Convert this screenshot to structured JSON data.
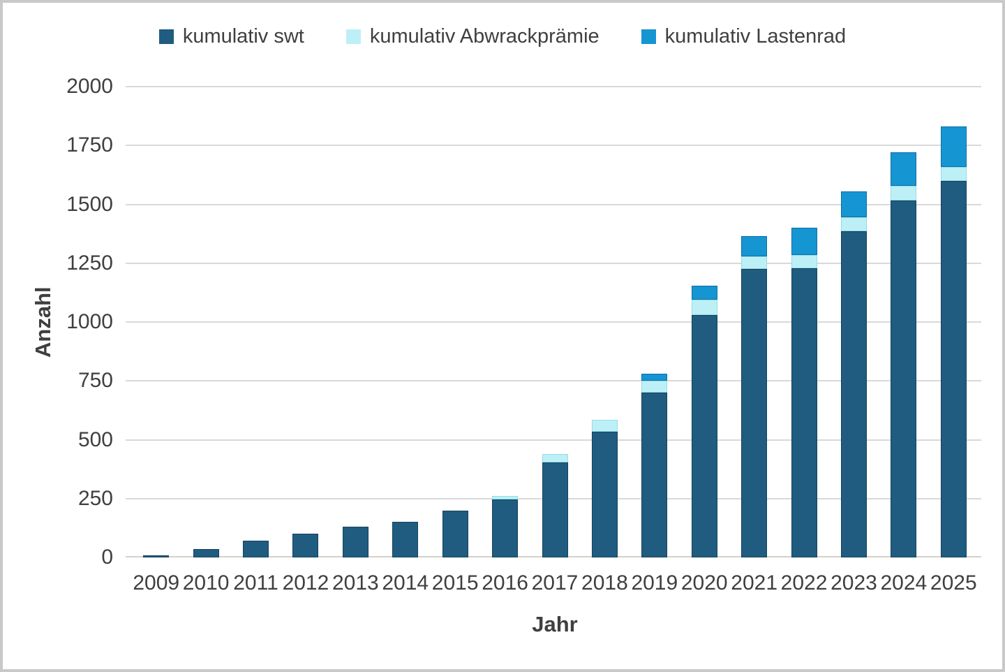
{
  "frame": {
    "border_color": "#c9c9c9"
  },
  "chart_data": {
    "type": "bar",
    "stacked": true,
    "title": "",
    "xlabel": "Jahr",
    "ylabel": "Anzahl",
    "categories": [
      "2009",
      "2010",
      "2011",
      "2012",
      "2013",
      "2014",
      "2015",
      "2016",
      "2017",
      "2018",
      "2019",
      "2020",
      "2021",
      "2022",
      "2023",
      "2024",
      "2025"
    ],
    "series": [
      {
        "name": "kumulativ swt",
        "color": "#1f5c80",
        "values": [
          10,
          35,
          70,
          100,
          130,
          150,
          200,
          245,
          405,
          535,
          700,
          1030,
          1225,
          1230,
          1385,
          1515,
          1600
        ]
      },
      {
        "name": "kumulativ Abwrackprämie",
        "color": "#bdf0f6",
        "values": [
          0,
          0,
          0,
          0,
          0,
          0,
          0,
          15,
          35,
          50,
          50,
          65,
          55,
          55,
          60,
          65,
          60
        ]
      },
      {
        "name": "kumulativ Lastenrad",
        "color": "#1695d3",
        "values": [
          0,
          0,
          0,
          0,
          0,
          0,
          0,
          0,
          0,
          0,
          30,
          60,
          85,
          115,
          110,
          140,
          170
        ]
      }
    ],
    "y_ticks": [
      0,
      250,
      500,
      750,
      1000,
      1250,
      1500,
      1750,
      2000
    ],
    "ylim": [
      0,
      2000
    ],
    "grid": true,
    "legend_position": "top",
    "text_color": "#3f3f3f",
    "grid_color": "#d9d9d9"
  }
}
